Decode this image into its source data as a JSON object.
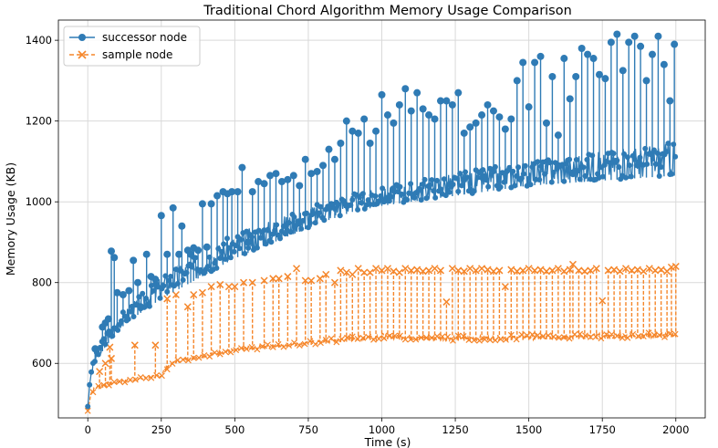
{
  "chart_data": {
    "type": "line",
    "title": "Traditional Chord Algorithm Memory Usage Comparison",
    "xlabel": "Time (s)",
    "ylabel": "Memory Usage (KB)",
    "xlim": [
      -100,
      2100
    ],
    "ylim": [
      465,
      1450
    ],
    "xticks": [
      0,
      250,
      500,
      750,
      1000,
      1250,
      1500,
      1750,
      2000
    ],
    "yticks": [
      600,
      800,
      1000,
      1200,
      1400
    ],
    "grid": true,
    "legend_position": "top-left",
    "colors": {
      "successor": "#2f7bb5",
      "sample": "#f5862a",
      "grid": "#d9d9d9",
      "axis": "#000000"
    },
    "series": [
      {
        "name": "successor node",
        "linestyle": "solid",
        "marker": "circle",
        "baseline": {
          "x": [
            0,
            10,
            25,
            50,
            75,
            100,
            150,
            200,
            250,
            300,
            350,
            400,
            450,
            500,
            600,
            700,
            800,
            900,
            1000,
            1100,
            1200,
            1300,
            1400,
            1500,
            1600,
            1700,
            1800,
            1900,
            2000
          ],
          "low": [
            490,
            560,
            600,
            630,
            655,
            680,
            710,
            735,
            760,
            780,
            800,
            820,
            840,
            860,
            890,
            920,
            950,
            975,
            990,
            1000,
            1010,
            1020,
            1030,
            1040,
            1045,
            1050,
            1055,
            1060,
            1065
          ],
          "high": [
            500,
            580,
            620,
            660,
            690,
            715,
            750,
            785,
            815,
            840,
            860,
            880,
            900,
            920,
            950,
            975,
            1000,
            1020,
            1035,
            1050,
            1065,
            1080,
            1090,
            1100,
            1110,
            1120,
            1130,
            1140,
            1150
          ]
        },
        "spikes": [
          [
            25,
            636
          ],
          [
            50,
            690
          ],
          [
            60,
            700
          ],
          [
            70,
            710
          ],
          [
            80,
            878
          ],
          [
            90,
            862
          ],
          [
            100,
            775
          ],
          [
            120,
            770
          ],
          [
            140,
            780
          ],
          [
            155,
            855
          ],
          [
            170,
            800
          ],
          [
            180,
            740
          ],
          [
            200,
            870
          ],
          [
            215,
            815
          ],
          [
            230,
            808
          ],
          [
            250,
            966
          ],
          [
            270,
            870
          ],
          [
            290,
            985
          ],
          [
            310,
            870
          ],
          [
            320,
            940
          ],
          [
            340,
            880
          ],
          [
            350,
            870
          ],
          [
            360,
            886
          ],
          [
            375,
            880
          ],
          [
            390,
            995
          ],
          [
            405,
            888
          ],
          [
            420,
            995
          ],
          [
            440,
            1015
          ],
          [
            460,
            1025
          ],
          [
            475,
            1020
          ],
          [
            490,
            1025
          ],
          [
            510,
            1025
          ],
          [
            525,
            1085
          ],
          [
            545,
            900
          ],
          [
            560,
            1025
          ],
          [
            580,
            1050
          ],
          [
            600,
            1045
          ],
          [
            620,
            1065
          ],
          [
            640,
            1070
          ],
          [
            660,
            1050
          ],
          [
            680,
            1055
          ],
          [
            700,
            1065
          ],
          [
            720,
            1040
          ],
          [
            740,
            1105
          ],
          [
            760,
            1070
          ],
          [
            780,
            1075
          ],
          [
            800,
            1090
          ],
          [
            820,
            1130
          ],
          [
            840,
            1105
          ],
          [
            860,
            1145
          ],
          [
            880,
            1200
          ],
          [
            900,
            1175
          ],
          [
            920,
            1170
          ],
          [
            940,
            1205
          ],
          [
            960,
            1145
          ],
          [
            980,
            1175
          ],
          [
            1000,
            1265
          ],
          [
            1020,
            1215
          ],
          [
            1040,
            1195
          ],
          [
            1060,
            1240
          ],
          [
            1080,
            1280
          ],
          [
            1100,
            1225
          ],
          [
            1120,
            1270
          ],
          [
            1140,
            1230
          ],
          [
            1160,
            1215
          ],
          [
            1180,
            1205
          ],
          [
            1200,
            1250
          ],
          [
            1220,
            1250
          ],
          [
            1240,
            1240
          ],
          [
            1260,
            1270
          ],
          [
            1280,
            1170
          ],
          [
            1300,
            1185
          ],
          [
            1320,
            1195
          ],
          [
            1340,
            1215
          ],
          [
            1360,
            1240
          ],
          [
            1380,
            1225
          ],
          [
            1400,
            1210
          ],
          [
            1420,
            1180
          ],
          [
            1440,
            1205
          ],
          [
            1460,
            1300
          ],
          [
            1480,
            1345
          ],
          [
            1500,
            1235
          ],
          [
            1520,
            1345
          ],
          [
            1540,
            1360
          ],
          [
            1560,
            1195
          ],
          [
            1580,
            1310
          ],
          [
            1600,
            1165
          ],
          [
            1620,
            1355
          ],
          [
            1640,
            1255
          ],
          [
            1660,
            1310
          ],
          [
            1680,
            1380
          ],
          [
            1700,
            1365
          ],
          [
            1720,
            1355
          ],
          [
            1740,
            1315
          ],
          [
            1760,
            1305
          ],
          [
            1780,
            1395
          ],
          [
            1800,
            1415
          ],
          [
            1820,
            1325
          ],
          [
            1840,
            1395
          ],
          [
            1860,
            1410
          ],
          [
            1880,
            1385
          ],
          [
            1900,
            1300
          ],
          [
            1920,
            1365
          ],
          [
            1940,
            1410
          ],
          [
            1960,
            1340
          ],
          [
            1980,
            1250
          ],
          [
            1995,
            1390
          ]
        ]
      },
      {
        "name": "sample node",
        "linestyle": "dashed",
        "marker": "x",
        "baseline": {
          "x": [
            0,
            10,
            25,
            50,
            75,
            100,
            150,
            200,
            250,
            260,
            275,
            300,
            350,
            400,
            450,
            500,
            600,
            700,
            800,
            900,
            1000,
            1100,
            1200,
            1300,
            1400,
            1500,
            1600,
            1700,
            1800,
            1900,
            2000
          ],
          "low": [
            480,
            520,
            535,
            540,
            545,
            550,
            555,
            560,
            565,
            575,
            590,
            600,
            608,
            615,
            622,
            628,
            636,
            642,
            648,
            655,
            660,
            658,
            656,
            656,
            657,
            658,
            660,
            660,
            661,
            662,
            665
          ],
          "high": [
            485,
            530,
            545,
            550,
            555,
            558,
            563,
            568,
            575,
            590,
            600,
            608,
            616,
            624,
            632,
            638,
            646,
            652,
            660,
            668,
            675,
            672,
            670,
            668,
            670,
            672,
            674,
            674,
            675,
            676,
            678
          ]
        },
        "spikes": [
          [
            40,
            580
          ],
          [
            60,
            600
          ],
          [
            75,
            640
          ],
          [
            80,
            612
          ],
          [
            160,
            645
          ],
          [
            230,
            645
          ],
          [
            270,
            760
          ],
          [
            300,
            770
          ],
          [
            340,
            740
          ],
          [
            360,
            770
          ],
          [
            390,
            775
          ],
          [
            420,
            790
          ],
          [
            450,
            795
          ],
          [
            480,
            790
          ],
          [
            500,
            790
          ],
          [
            530,
            800
          ],
          [
            560,
            800
          ],
          [
            600,
            805
          ],
          [
            630,
            810
          ],
          [
            650,
            810
          ],
          [
            680,
            815
          ],
          [
            710,
            835
          ],
          [
            740,
            805
          ],
          [
            760,
            805
          ],
          [
            790,
            810
          ],
          [
            810,
            820
          ],
          [
            840,
            800
          ],
          [
            860,
            830
          ],
          [
            880,
            825
          ],
          [
            900,
            820
          ],
          [
            920,
            835
          ],
          [
            940,
            825
          ],
          [
            960,
            825
          ],
          [
            980,
            835
          ],
          [
            1000,
            830
          ],
          [
            1020,
            835
          ],
          [
            1040,
            828
          ],
          [
            1060,
            825
          ],
          [
            1080,
            835
          ],
          [
            1100,
            830
          ],
          [
            1120,
            832
          ],
          [
            1140,
            828
          ],
          [
            1160,
            830
          ],
          [
            1180,
            835
          ],
          [
            1200,
            830
          ],
          [
            1220,
            752
          ],
          [
            1240,
            835
          ],
          [
            1260,
            830
          ],
          [
            1280,
            828
          ],
          [
            1300,
            835
          ],
          [
            1320,
            830
          ],
          [
            1340,
            835
          ],
          [
            1360,
            832
          ],
          [
            1380,
            828
          ],
          [
            1400,
            830
          ],
          [
            1420,
            790
          ],
          [
            1440,
            832
          ],
          [
            1460,
            828
          ],
          [
            1480,
            830
          ],
          [
            1500,
            835
          ],
          [
            1520,
            830
          ],
          [
            1540,
            832
          ],
          [
            1560,
            828
          ],
          [
            1580,
            830
          ],
          [
            1600,
            835
          ],
          [
            1620,
            828
          ],
          [
            1640,
            832
          ],
          [
            1650,
            845
          ],
          [
            1670,
            830
          ],
          [
            1690,
            828
          ],
          [
            1710,
            830
          ],
          [
            1730,
            835
          ],
          [
            1750,
            755
          ],
          [
            1770,
            830
          ],
          [
            1790,
            832
          ],
          [
            1810,
            828
          ],
          [
            1830,
            835
          ],
          [
            1850,
            830
          ],
          [
            1870,
            832
          ],
          [
            1890,
            828
          ],
          [
            1910,
            835
          ],
          [
            1930,
            830
          ],
          [
            1950,
            832
          ],
          [
            1970,
            828
          ],
          [
            1985,
            838
          ],
          [
            2000,
            840
          ]
        ]
      }
    ]
  }
}
